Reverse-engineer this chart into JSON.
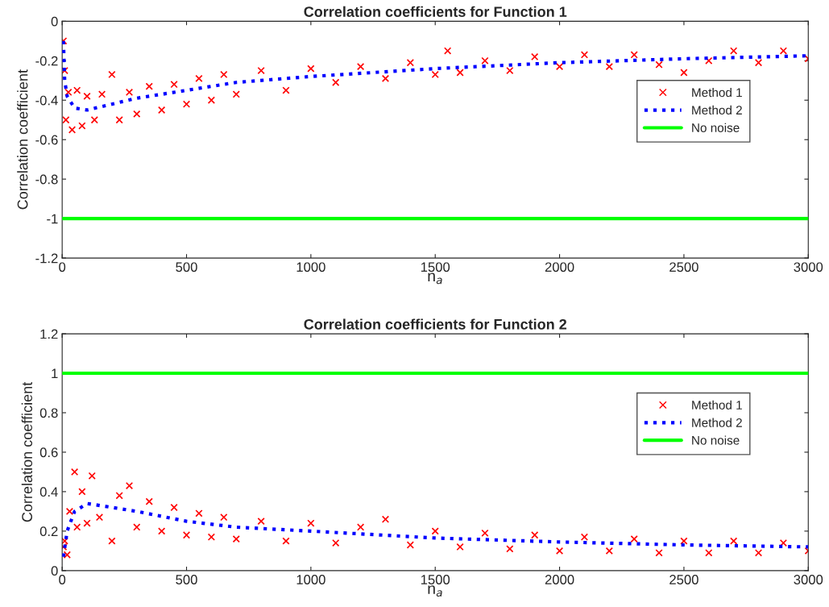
{
  "chart_data": [
    {
      "type": "scatter",
      "title": "Correlation coefficients for Function 1",
      "xlabel": "n$_{a}$",
      "ylabel": "Correlation coefficient",
      "xlim": [
        0,
        3000
      ],
      "xticks": [
        0,
        500,
        1000,
        1500,
        2000,
        2500,
        3000
      ],
      "ylim": [
        -1.2,
        0
      ],
      "yticks": [
        {
          "value": -1.2,
          "label": "-1.2"
        },
        {
          "value": -1,
          "label": "-1"
        },
        {
          "value": -0.8,
          "label": "-0.8"
        },
        {
          "value": -0.6,
          "label": "-0.6"
        },
        {
          "value": -0.4,
          "label": "-0.4"
        },
        {
          "value": -0.2,
          "label": "-0.2"
        },
        0
      ],
      "grid": false,
      "legend": "right",
      "series": [
        {
          "name": "Method 1",
          "marker": "cross",
          "color": "#ff0000",
          "x": [
            5,
            10,
            15,
            25,
            40,
            60,
            80,
            100,
            130,
            160,
            200,
            230,
            270,
            300,
            350,
            400,
            450,
            500,
            550,
            600,
            650,
            700,
            800,
            900,
            1000,
            1100,
            1200,
            1300,
            1400,
            1500,
            1550,
            1600,
            1700,
            1800,
            1900,
            2000,
            2100,
            2200,
            2300,
            2400,
            2500,
            2600,
            2700,
            2800,
            2900,
            3000
          ],
          "values": [
            -0.1,
            -0.25,
            -0.5,
            -0.36,
            -0.55,
            -0.35,
            -0.53,
            -0.38,
            -0.5,
            -0.37,
            -0.27,
            -0.5,
            -0.36,
            -0.47,
            -0.33,
            -0.45,
            -0.32,
            -0.42,
            -0.29,
            -0.4,
            -0.27,
            -0.37,
            -0.25,
            -0.35,
            -0.24,
            -0.31,
            -0.23,
            -0.29,
            -0.21,
            -0.27,
            -0.15,
            -0.26,
            -0.2,
            -0.25,
            -0.18,
            -0.23,
            -0.17,
            -0.23,
            -0.17,
            -0.22,
            -0.26,
            -0.2,
            -0.15,
            -0.21,
            -0.15,
            -0.19
          ]
        },
        {
          "name": "Method 2",
          "type": "line",
          "line_style": "dotted",
          "color": "#0000ff",
          "x": [
            5,
            10,
            20,
            50,
            100,
            200,
            300,
            500,
            700,
            1000,
            1500,
            2000,
            2500,
            3000
          ],
          "values": [
            -0.1,
            -0.3,
            -0.38,
            -0.44,
            -0.45,
            -0.42,
            -0.39,
            -0.35,
            -0.31,
            -0.28,
            -0.24,
            -0.21,
            -0.19,
            -0.175
          ]
        },
        {
          "name": "No noise",
          "type": "line",
          "line_style": "solid",
          "color": "#00ff00",
          "x": [
            0,
            3000
          ],
          "values": [
            -1,
            -1
          ]
        }
      ]
    },
    {
      "type": "scatter",
      "title": "Correlation coefficients for Function 2",
      "xlabel": "n$_{a}$",
      "ylabel": "Correlation coefficient",
      "xlim": [
        0,
        3000
      ],
      "xticks": [
        0,
        500,
        1000,
        1500,
        2000,
        2500,
        3000
      ],
      "ylim": [
        0,
        1.2
      ],
      "yticks": [
        0,
        0.2,
        0.4,
        0.6,
        0.8,
        1,
        1.2
      ],
      "grid": false,
      "legend": "right",
      "series": [
        {
          "name": "Method 1",
          "marker": "cross",
          "color": "#ff0000",
          "x": [
            5,
            10,
            20,
            30,
            50,
            60,
            80,
            100,
            120,
            150,
            200,
            230,
            270,
            300,
            350,
            400,
            450,
            500,
            550,
            600,
            650,
            700,
            800,
            900,
            1000,
            1100,
            1200,
            1300,
            1400,
            1500,
            1600,
            1700,
            1800,
            1900,
            2000,
            2100,
            2200,
            2300,
            2400,
            2500,
            2600,
            2700,
            2800,
            2900,
            3000
          ],
          "values": [
            0.12,
            0.15,
            0.08,
            0.3,
            0.5,
            0.22,
            0.4,
            0.24,
            0.48,
            0.27,
            0.15,
            0.38,
            0.43,
            0.22,
            0.35,
            0.2,
            0.32,
            0.18,
            0.29,
            0.17,
            0.27,
            0.16,
            0.25,
            0.15,
            0.24,
            0.14,
            0.22,
            0.26,
            0.13,
            0.2,
            0.12,
            0.19,
            0.11,
            0.18,
            0.1,
            0.17,
            0.1,
            0.16,
            0.09,
            0.15,
            0.09,
            0.15,
            0.09,
            0.14,
            0.1
          ]
        },
        {
          "name": "Method 2",
          "type": "line",
          "line_style": "dotted",
          "color": "#0000ff",
          "x": [
            5,
            20,
            50,
            100,
            200,
            300,
            500,
            700,
            1000,
            1500,
            2000,
            2500,
            3000
          ],
          "values": [
            0.07,
            0.2,
            0.3,
            0.34,
            0.32,
            0.3,
            0.25,
            0.22,
            0.2,
            0.165,
            0.145,
            0.13,
            0.12
          ]
        },
        {
          "name": "No noise",
          "type": "line",
          "line_style": "solid",
          "color": "#00ff00",
          "x": [
            0,
            3000
          ],
          "values": [
            1,
            1
          ]
        }
      ]
    }
  ]
}
